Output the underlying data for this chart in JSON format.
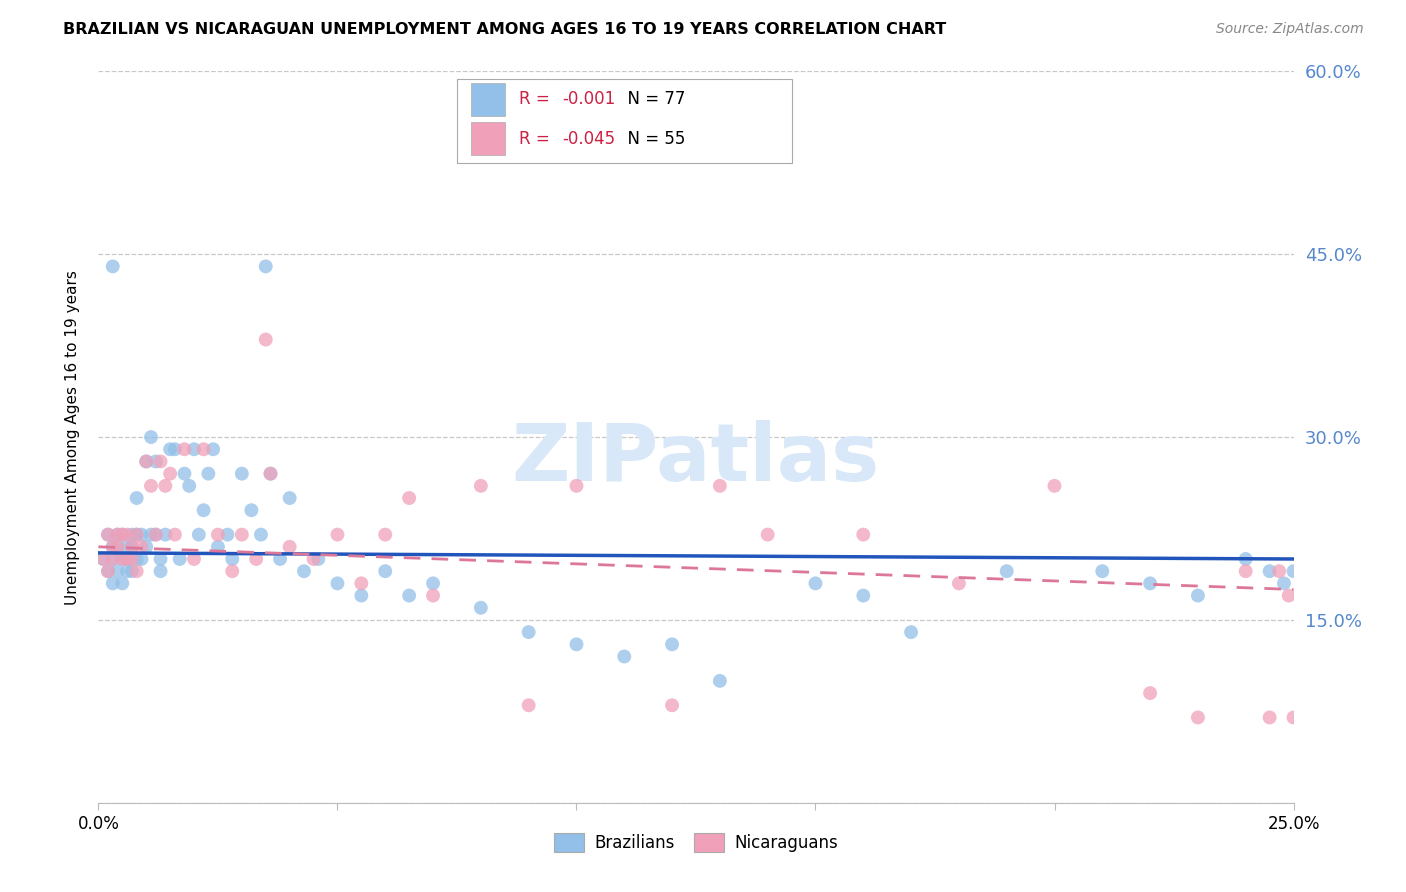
{
  "title": "BRAZILIAN VS NICARAGUAN UNEMPLOYMENT AMONG AGES 16 TO 19 YEARS CORRELATION CHART",
  "source": "Source: ZipAtlas.com",
  "ylabel": "Unemployment Among Ages 16 to 19 years",
  "xlim": [
    0.0,
    0.25
  ],
  "ylim": [
    0.0,
    0.6
  ],
  "xticks": [
    0.0,
    0.05,
    0.1,
    0.15,
    0.2,
    0.25
  ],
  "yticks": [
    0.0,
    0.15,
    0.3,
    0.45,
    0.6
  ],
  "ytick_right_labels": [
    "",
    "15.0%",
    "30.0%",
    "45.0%",
    "60.0%"
  ],
  "xtick_labels": [
    "0.0%",
    "",
    "",
    "",
    "",
    "25.0%"
  ],
  "brazil_color": "#92c0e8",
  "nicaragua_color": "#f0a0b8",
  "brazil_trend_color": "#2255bb",
  "nicaragua_trend_color": "#dd7799",
  "watermark": "ZIPatlas",
  "watermark_color": "#d8e8f8",
  "right_axis_color": "#5588cc",
  "legend_r_color": "#cc2244",
  "brazil_label": "Brazilians",
  "nicaragua_label": "Nicaraguans",
  "brazil_legend_text": "R = -0.001   N = 77",
  "nicaragua_legend_text": "R = -0.045   N = 55",
  "brazil_trend_y0": 0.205,
  "brazil_trend_y1": 0.2,
  "nicaragua_trend_y0": 0.21,
  "nicaragua_trend_y1": 0.175,
  "brazil_x": [
    0.001,
    0.002,
    0.002,
    0.003,
    0.003,
    0.003,
    0.004,
    0.004,
    0.004,
    0.005,
    0.005,
    0.005,
    0.006,
    0.006,
    0.006,
    0.007,
    0.007,
    0.007,
    0.008,
    0.008,
    0.008,
    0.009,
    0.009,
    0.01,
    0.01,
    0.011,
    0.011,
    0.012,
    0.012,
    0.013,
    0.013,
    0.014,
    0.015,
    0.016,
    0.017,
    0.018,
    0.019,
    0.02,
    0.021,
    0.022,
    0.023,
    0.024,
    0.025,
    0.027,
    0.028,
    0.03,
    0.032,
    0.034,
    0.036,
    0.038,
    0.04,
    0.043,
    0.046,
    0.05,
    0.055,
    0.06,
    0.065,
    0.07,
    0.08,
    0.09,
    0.1,
    0.11,
    0.12,
    0.13,
    0.15,
    0.16,
    0.17,
    0.19,
    0.21,
    0.22,
    0.23,
    0.24,
    0.245,
    0.248,
    0.25,
    0.003,
    0.035
  ],
  "brazil_y": [
    0.2,
    0.22,
    0.19,
    0.21,
    0.18,
    0.2,
    0.22,
    0.19,
    0.21,
    0.2,
    0.18,
    0.22,
    0.19,
    0.21,
    0.2,
    0.22,
    0.19,
    0.21,
    0.2,
    0.22,
    0.25,
    0.2,
    0.22,
    0.21,
    0.28,
    0.22,
    0.3,
    0.28,
    0.22,
    0.2,
    0.19,
    0.22,
    0.29,
    0.29,
    0.2,
    0.27,
    0.26,
    0.29,
    0.22,
    0.24,
    0.27,
    0.29,
    0.21,
    0.22,
    0.2,
    0.27,
    0.24,
    0.22,
    0.27,
    0.2,
    0.25,
    0.19,
    0.2,
    0.18,
    0.17,
    0.19,
    0.17,
    0.18,
    0.16,
    0.14,
    0.13,
    0.12,
    0.13,
    0.1,
    0.18,
    0.17,
    0.14,
    0.19,
    0.19,
    0.18,
    0.17,
    0.2,
    0.19,
    0.18,
    0.19,
    0.44,
    0.44
  ],
  "nicaragua_x": [
    0.001,
    0.002,
    0.002,
    0.003,
    0.003,
    0.004,
    0.004,
    0.005,
    0.005,
    0.006,
    0.006,
    0.007,
    0.007,
    0.008,
    0.008,
    0.009,
    0.01,
    0.011,
    0.012,
    0.013,
    0.014,
    0.015,
    0.016,
    0.018,
    0.02,
    0.022,
    0.025,
    0.028,
    0.03,
    0.033,
    0.036,
    0.04,
    0.045,
    0.05,
    0.055,
    0.06,
    0.07,
    0.08,
    0.09,
    0.1,
    0.12,
    0.13,
    0.14,
    0.16,
    0.18,
    0.2,
    0.22,
    0.23,
    0.24,
    0.245,
    0.247,
    0.249,
    0.25,
    0.035,
    0.065
  ],
  "nicaragua_y": [
    0.2,
    0.22,
    0.19,
    0.21,
    0.2,
    0.22,
    0.21,
    0.2,
    0.22,
    0.2,
    0.22,
    0.21,
    0.2,
    0.22,
    0.19,
    0.21,
    0.28,
    0.26,
    0.22,
    0.28,
    0.26,
    0.27,
    0.22,
    0.29,
    0.2,
    0.29,
    0.22,
    0.19,
    0.22,
    0.2,
    0.27,
    0.21,
    0.2,
    0.22,
    0.18,
    0.22,
    0.17,
    0.26,
    0.08,
    0.26,
    0.08,
    0.26,
    0.22,
    0.22,
    0.18,
    0.26,
    0.09,
    0.07,
    0.19,
    0.07,
    0.19,
    0.17,
    0.07,
    0.38,
    0.25
  ]
}
